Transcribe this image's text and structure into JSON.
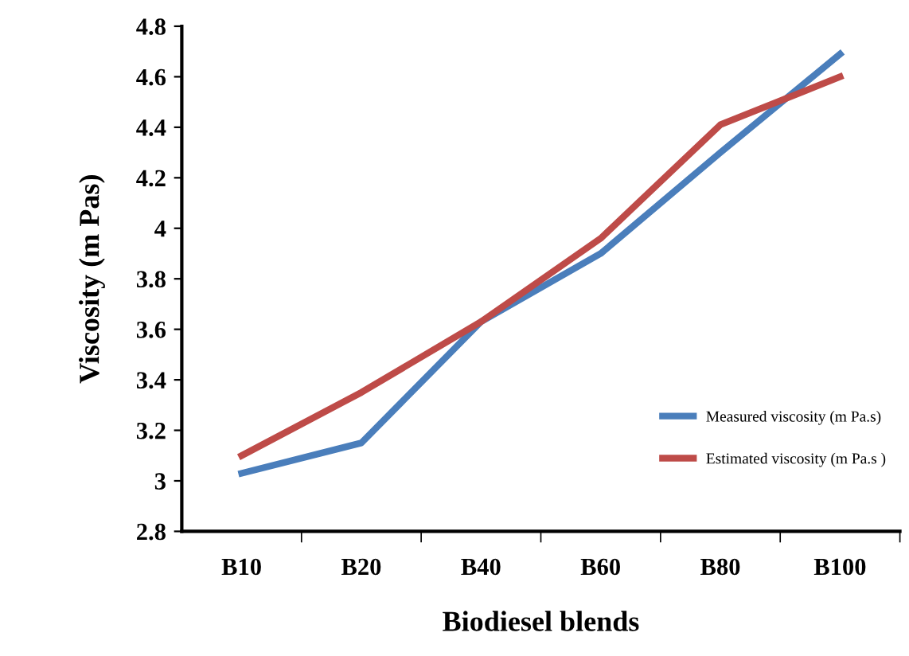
{
  "chart_data": {
    "type": "line",
    "xlabel": "Biodiesel blends",
    "ylabel": "Viscosity (m Pas)",
    "categories": [
      "B10",
      "B20",
      "B40",
      "B60",
      "B80",
      "B100"
    ],
    "series": [
      {
        "name": "Measured viscosity (m Pa.s)",
        "color": "#4a7ebb",
        "values": [
          3.03,
          3.15,
          3.63,
          3.9,
          4.3,
          4.69
        ]
      },
      {
        "name": "Estimated viscosity (m Pa.s )",
        "color": "#be4b48",
        "values": [
          3.1,
          3.35,
          3.63,
          3.96,
          4.41,
          4.6
        ]
      }
    ],
    "ylim": [
      2.8,
      4.8
    ],
    "yticks": [
      2.8,
      3,
      3.2,
      3.4,
      3.6,
      3.8,
      4,
      4.2,
      4.4,
      4.6,
      4.8
    ],
    "grid": false,
    "legend": "bottom right",
    "line_style": "solid",
    "marker": "none"
  }
}
